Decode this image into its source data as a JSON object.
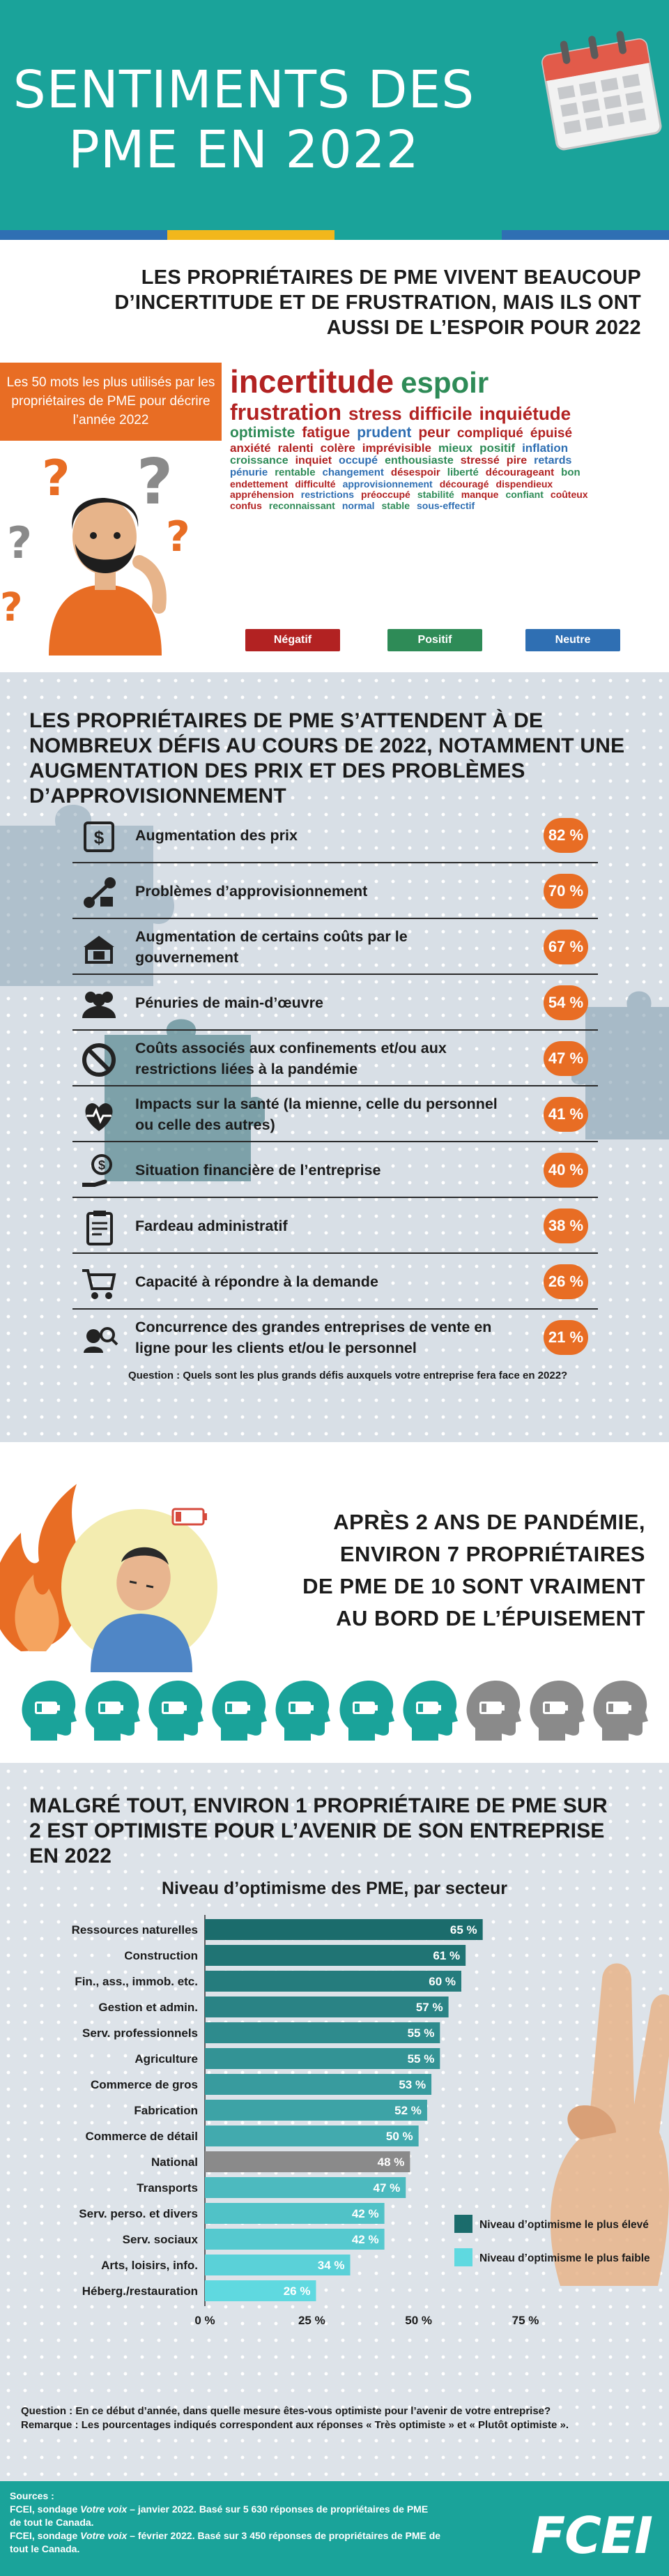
{
  "colors": {
    "teal": "#1aa39a",
    "orange": "#e86d24",
    "negative": "#b22222",
    "positive": "#2e8b57",
    "neutral": "#2f6fb3",
    "bar_dark": "#1b6c6c",
    "bar_light": "#5fd9e0",
    "bar_national": "#8a8a8a"
  },
  "header": {
    "title_line1": "SENTIMENTS DES",
    "title_line2": "PME EN 2022",
    "icon": "calendar-icon"
  },
  "section1": {
    "heading": "LES PROPRIÉTAIRES DE PME VIVENT BEAUCOUP D’INCERTITUDE ET DE FRUSTRATION, MAIS ILS ONT AUSSI DE L’ESPOIR POUR 2022",
    "box_text": "Les 50 mots les plus utilisés par les propriétaires de PME pour décrire l’année 2022",
    "legend": {
      "negative": "Négatif",
      "positive": "Positif",
      "neutral": "Neutre"
    },
    "words": [
      [
        {
          "t": "incertitude",
          "s": "neg",
          "z": 46
        },
        {
          "t": "espoir",
          "s": "pos",
          "z": 42
        }
      ],
      [
        {
          "t": "frustration",
          "s": "neg",
          "z": 32
        },
        {
          "t": "stress",
          "s": "neg",
          "z": 26
        },
        {
          "t": "difficile",
          "s": "neg",
          "z": 26
        },
        {
          "t": "inquiétude",
          "s": "neg",
          "z": 26
        }
      ],
      [
        {
          "t": "optimiste",
          "s": "pos",
          "z": 21
        },
        {
          "t": "fatigue",
          "s": "neg",
          "z": 21
        },
        {
          "t": "prudent",
          "s": "neu",
          "z": 21
        },
        {
          "t": "peur",
          "s": "neg",
          "z": 21
        },
        {
          "t": "compliqué",
          "s": "neg",
          "z": 19
        },
        {
          "t": "épuisé",
          "s": "neg",
          "z": 19
        }
      ],
      [
        {
          "t": "anxiété",
          "s": "neg",
          "z": 17
        },
        {
          "t": "ralenti",
          "s": "neg",
          "z": 17
        },
        {
          "t": "colère",
          "s": "neg",
          "z": 17
        },
        {
          "t": "imprévisible",
          "s": "neg",
          "z": 17
        },
        {
          "t": "mieux",
          "s": "pos",
          "z": 17
        },
        {
          "t": "positif",
          "s": "pos",
          "z": 17
        },
        {
          "t": "inflation",
          "s": "neu",
          "z": 17
        }
      ],
      [
        {
          "t": "croissance",
          "s": "pos",
          "z": 16
        },
        {
          "t": "inquiet",
          "s": "neg",
          "z": 16
        },
        {
          "t": "occupé",
          "s": "neu",
          "z": 16
        },
        {
          "t": "enthousiaste",
          "s": "pos",
          "z": 16
        },
        {
          "t": "stressé",
          "s": "neg",
          "z": 16
        },
        {
          "t": "pire",
          "s": "neg",
          "z": 16
        },
        {
          "t": "retards",
          "s": "neu",
          "z": 16
        }
      ],
      [
        {
          "t": "pénurie",
          "s": "neu",
          "z": 15
        },
        {
          "t": "rentable",
          "s": "pos",
          "z": 15
        },
        {
          "t": "changement",
          "s": "neu",
          "z": 15
        },
        {
          "t": "désespoir",
          "s": "neg",
          "z": 15
        },
        {
          "t": "liberté",
          "s": "pos",
          "z": 15
        },
        {
          "t": "décourageant",
          "s": "neg",
          "z": 15
        },
        {
          "t": "bon",
          "s": "pos",
          "z": 15
        }
      ],
      [
        {
          "t": "endettement",
          "s": "neg",
          "z": 14
        },
        {
          "t": "difficulté",
          "s": "neg",
          "z": 14
        },
        {
          "t": "approvisionnement",
          "s": "neu",
          "z": 14
        },
        {
          "t": "découragé",
          "s": "neg",
          "z": 14
        },
        {
          "t": "dispendieux",
          "s": "neg",
          "z": 14
        }
      ],
      [
        {
          "t": "appréhension",
          "s": "neg",
          "z": 14
        },
        {
          "t": "restrictions",
          "s": "neu",
          "z": 14
        },
        {
          "t": "préoccupé",
          "s": "neg",
          "z": 14
        },
        {
          "t": "stabilité",
          "s": "pos",
          "z": 14
        },
        {
          "t": "manque",
          "s": "neg",
          "z": 14
        },
        {
          "t": "confiant",
          "s": "pos",
          "z": 14
        },
        {
          "t": "coûteux",
          "s": "neg",
          "z": 14
        }
      ],
      [
        {
          "t": "confus",
          "s": "neg",
          "z": 14
        },
        {
          "t": "reconnaissant",
          "s": "pos",
          "z": 14
        },
        {
          "t": "normal",
          "s": "neu",
          "z": 14
        },
        {
          "t": "stable",
          "s": "pos",
          "z": 14
        },
        {
          "t": "sous-effectif",
          "s": "neu",
          "z": 14
        }
      ]
    ]
  },
  "section2": {
    "heading": "LES PROPRIÉTAIRES DE PME S’ATTENDENT À DE NOMBREUX DÉFIS AU COURS DE 2022, NOTAMMENT UNE AUGMENTATION DES PRIX ET DES PROBLÈMES D’APPROVISIONNEMENT",
    "question": "Question : Quels sont les plus grands défis auxquels votre entreprise fera face en 2022?",
    "challenges": [
      {
        "label": "Augmentation des prix",
        "value": "82 %",
        "icon": "price-tag-icon"
      },
      {
        "label": "Problèmes d’approvisionnement",
        "value": "70 %",
        "icon": "supply-chain-icon"
      },
      {
        "label": "Augmentation de certains coûts par le gouvernement",
        "value": "67 %",
        "icon": "government-cost-icon"
      },
      {
        "label": "Pénuries de main-d’œuvre",
        "value": "54 %",
        "icon": "workers-icon"
      },
      {
        "label": "Coûts associés aux confinements et/ou aux restrictions liées à la pandémie",
        "value": "47 %",
        "icon": "prohibited-icon"
      },
      {
        "label": "Impacts sur la santé (la mienne, celle du personnel ou celle des autres)",
        "value": "41 %",
        "icon": "heart-pulse-icon"
      },
      {
        "label": "Situation financière de l’entreprise",
        "value": "40 %",
        "icon": "money-hand-icon"
      },
      {
        "label": "Fardeau administratif",
        "value": "38 %",
        "icon": "clipboard-icon"
      },
      {
        "label": "Capacité à répondre à la demande",
        "value": "26 %",
        "icon": "shopping-cart-icon"
      },
      {
        "label": "Concurrence des grandes entreprises de vente en ligne pour les clients et/ou le personnel",
        "value": "21 %",
        "icon": "online-competition-icon"
      }
    ]
  },
  "section3": {
    "text_lines": [
      "APRÈS 2 ANS DE PANDÉMIE,",
      "ENVIRON 7 PROPRIÉTAIRES",
      "DE PME DE 10 SONT VRAIMENT",
      "AU BORD DE L’ÉPUISEMENT"
    ],
    "heads_total": 10,
    "heads_exhausted": 7,
    "icons": {
      "flame": "flame-icon",
      "person": "exhausted-person-icon",
      "head": "low-battery-head-icon"
    }
  },
  "section4": {
    "heading": "MALGRÉ TOUT, ENVIRON 1 PROPRIÉTAIRE DE PME SUR 2 EST OPTIMISTE POUR L’AVENIR DE SON ENTREPRISE EN 2022",
    "question": "Question : En ce début d’année, dans quelle mesure êtes-vous optimiste pour l’avenir de votre entreprise?",
    "remark": "Remarque : Les pourcentages indiqués correspondent aux réponses « Très optimiste » et « Plutôt optimiste ».",
    "icon": "crossed-fingers-icon"
  },
  "chart_data": {
    "type": "bar",
    "orientation": "horizontal",
    "title": "Niveau d’optimisme des PME, par secteur",
    "categories": [
      "Ressources naturelles",
      "Construction",
      "Fin., ass., immob. etc.",
      "Gestion et admin.",
      "Serv. professionnels",
      "Agriculture",
      "Commerce de gros",
      "Fabrication",
      "Commerce de détail",
      "National",
      "Transports",
      "Serv. perso. et divers",
      "Serv. sociaux",
      "Arts, loisirs, info.",
      "Héberg./restauration"
    ],
    "values": [
      65,
      61,
      60,
      57,
      55,
      55,
      53,
      52,
      50,
      48,
      47,
      42,
      42,
      34,
      26
    ],
    "value_labels": [
      "65 %",
      "61 %",
      "60 %",
      "57 %",
      "55 %",
      "55 %",
      "53 %",
      "52 %",
      "50 %",
      "48 %",
      "47 %",
      "42 %",
      "42 %",
      "34 %",
      "26 %"
    ],
    "xlim": [
      0,
      75
    ],
    "xticks": [
      0,
      25,
      50,
      75
    ],
    "xtick_labels": [
      "0 %",
      "25 %",
      "50 %",
      "75 %"
    ],
    "highlight": "National",
    "legend": [
      {
        "name": "Niveau d’optimisme le plus élevé",
        "color": "#1b6c6c"
      },
      {
        "name": "Niveau d’optimisme le plus faible",
        "color": "#5fd9e0"
      }
    ],
    "legend_position": "right"
  },
  "footer": {
    "sources_title": "Sources :",
    "source1_a": "FCEI, sondage ",
    "source1_b": "Votre voix",
    "source1_c": " – janvier 2022. Basé sur 5 630 réponses de propriétaires de PME de tout le Canada.",
    "source2_a": "FCEI, sondage ",
    "source2_b": "Votre voix",
    "source2_c": " – février 2022. Basé sur 3 450 réponses de propriétaires de PME de tout le Canada.",
    "logo": "FCEI"
  }
}
